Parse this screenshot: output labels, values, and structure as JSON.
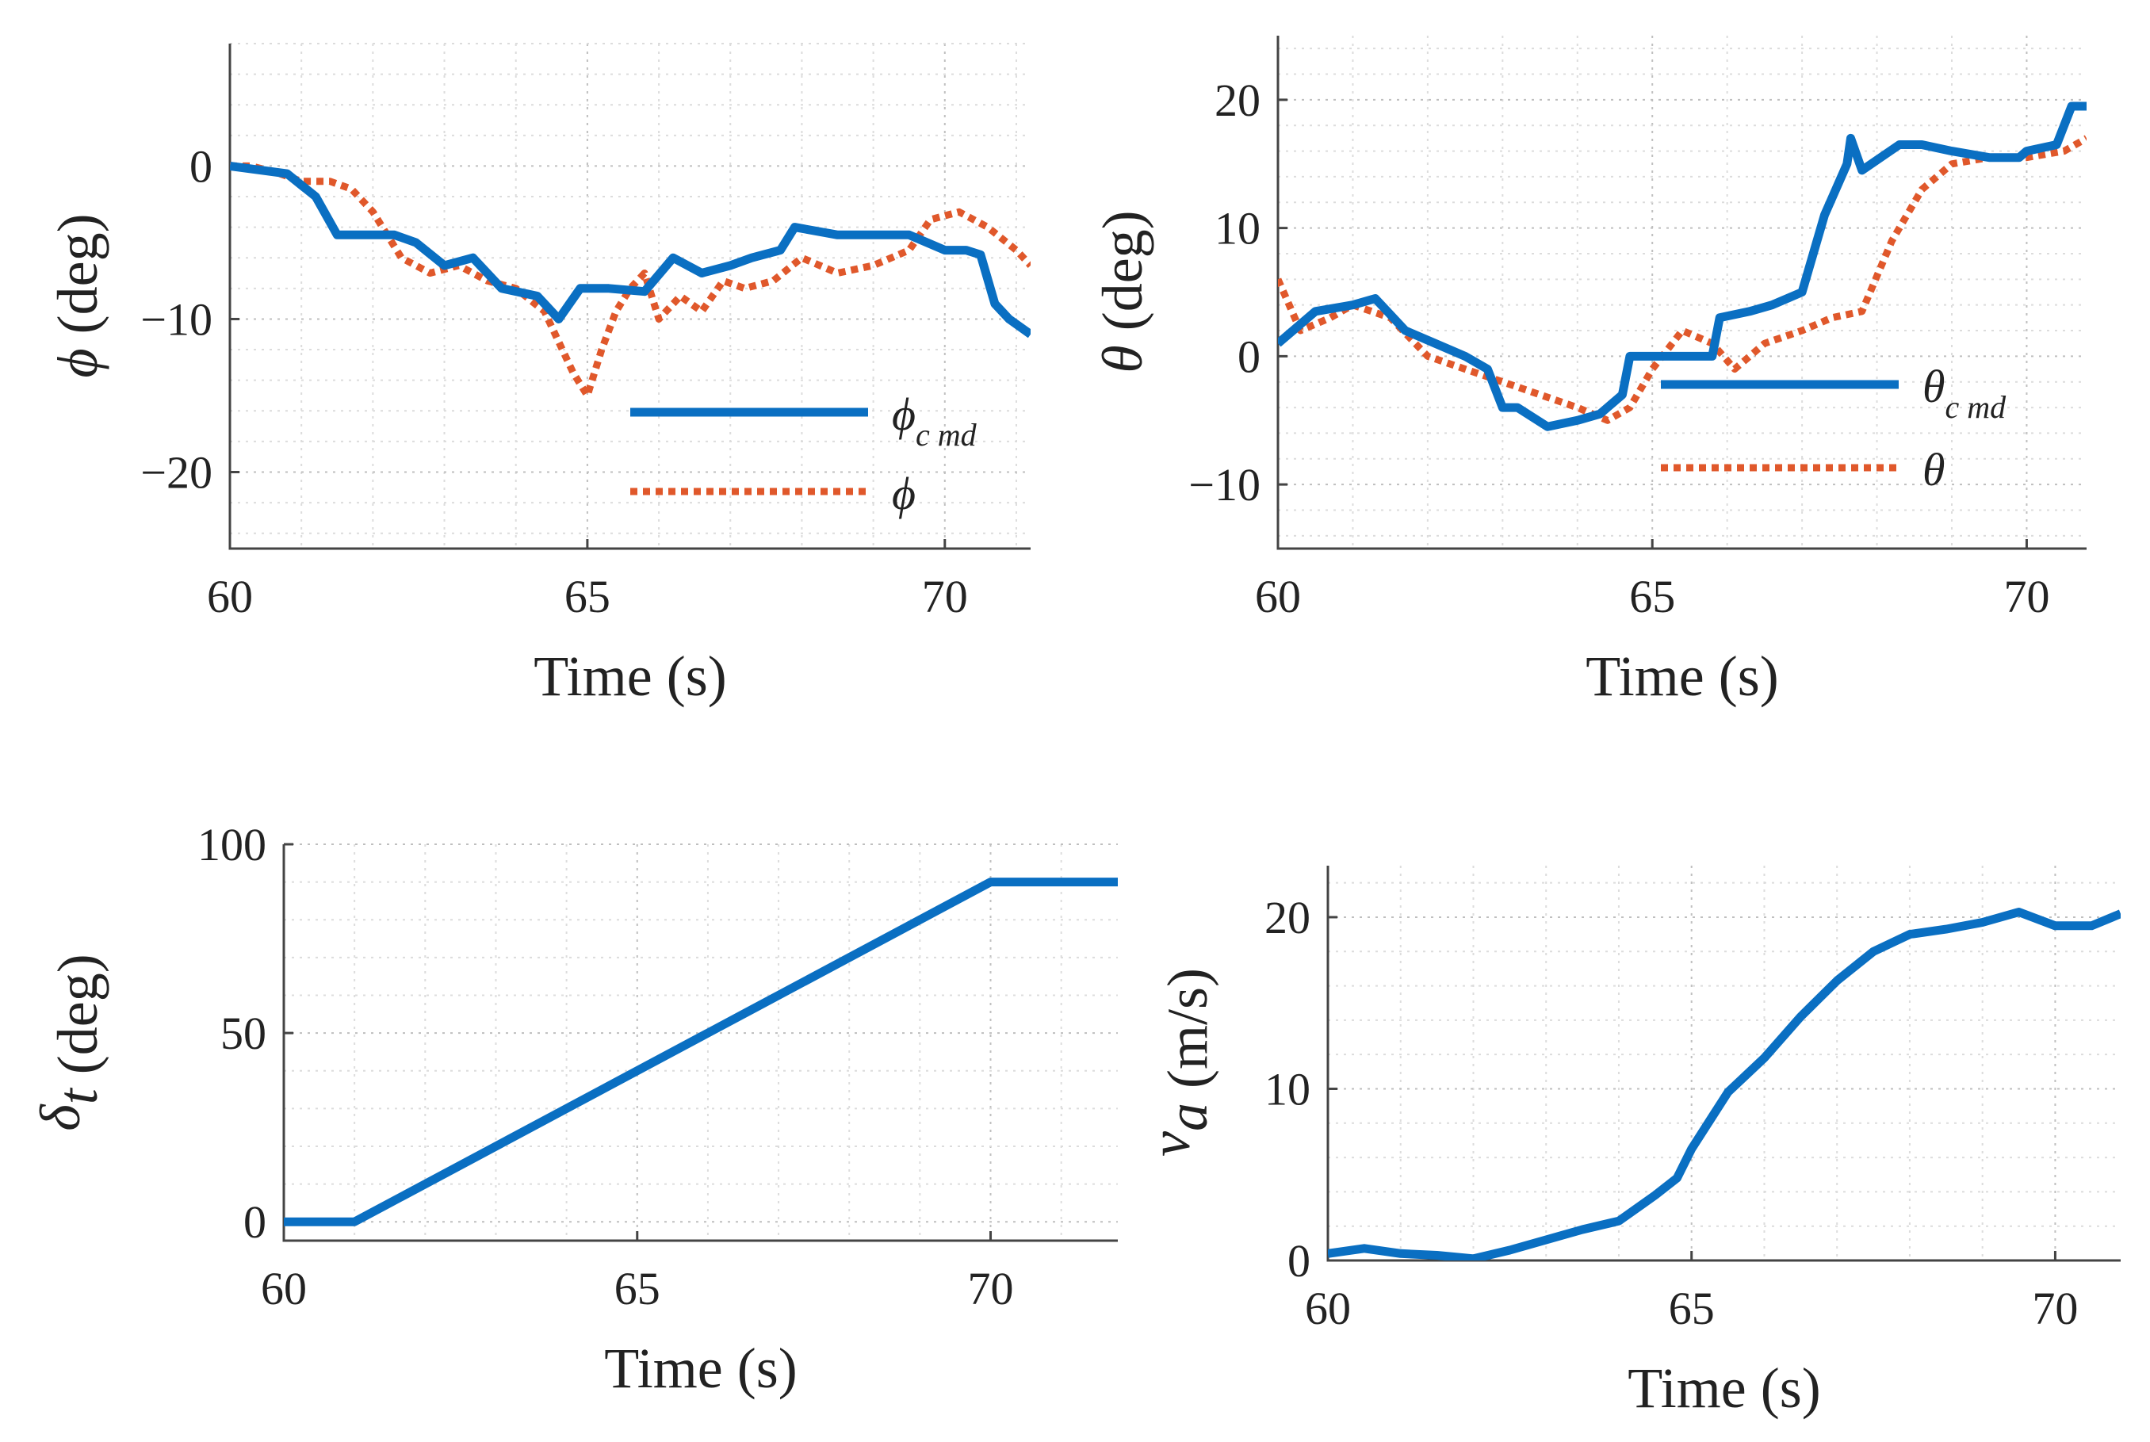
{
  "colors": {
    "cmd": "#0a6fc2",
    "actual": "#e0582b",
    "axis": "#444444",
    "text": "#222222"
  },
  "chart_data": [
    {
      "id": "roll",
      "type": "line",
      "xlabel": "Time (s)",
      "ylabel_symbol": "ϕ",
      "ylabel_rest": " (deg)",
      "xlim": [
        60,
        71.2
      ],
      "ylim": [
        -25,
        8
      ],
      "xticks": [
        60,
        65,
        70
      ],
      "yticks": [
        0,
        -10,
        -20
      ],
      "ytick_labels": [
        "0",
        "−10",
        "−20"
      ],
      "series": [
        {
          "name": "ϕ",
          "sub": "c md",
          "role": "cmd",
          "style": "solid",
          "x": [
            60,
            60.8,
            61.2,
            61.5,
            62.3,
            62.6,
            63.0,
            63.4,
            63.8,
            64.3,
            64.6,
            64.9,
            65.3,
            65.8,
            66.2,
            66.6,
            67.0,
            67.3,
            67.7,
            67.9,
            68.5,
            69.0,
            69.5,
            70.0,
            70.3,
            70.5,
            70.7,
            70.9,
            71.2
          ],
          "y": [
            0,
            -0.5,
            -2,
            -4.5,
            -4.5,
            -5,
            -6.5,
            -6,
            -8,
            -8.5,
            -10,
            -8,
            -8,
            -8.2,
            -6,
            -7,
            -6.5,
            -6,
            -5.5,
            -4,
            -4.5,
            -4.5,
            -4.5,
            -5.5,
            -5.5,
            -5.8,
            -9,
            -10,
            -11
          ]
        },
        {
          "name": "ϕ",
          "sub": "",
          "role": "actual",
          "style": "dotted",
          "x": [
            60,
            60.3,
            60.7,
            61.0,
            61.4,
            61.7,
            62.0,
            62.4,
            62.8,
            63.2,
            63.6,
            64.0,
            64.4,
            64.8,
            65.0,
            65.2,
            65.4,
            65.6,
            65.8,
            66.0,
            66.3,
            66.6,
            66.9,
            67.2,
            67.6,
            68.0,
            68.5,
            69.0,
            69.5,
            69.8,
            70.2,
            70.6,
            71.0,
            71.2
          ],
          "y": [
            0,
            0,
            -0.5,
            -1,
            -1,
            -1.5,
            -3,
            -6,
            -7,
            -6.5,
            -7.5,
            -8,
            -9.5,
            -13.5,
            -15,
            -12,
            -9.5,
            -8,
            -7,
            -10,
            -8.5,
            -9.5,
            -7.5,
            -8,
            -7.5,
            -6,
            -7,
            -6.5,
            -5.5,
            -3.5,
            -3,
            -4,
            -5.5,
            -6.5
          ]
        }
      ]
    },
    {
      "id": "pitch",
      "type": "line",
      "xlabel": "Time (s)",
      "ylabel_symbol": "θ",
      "ylabel_rest": " (deg)",
      "xlim": [
        60,
        70.8
      ],
      "ylim": [
        -15,
        25
      ],
      "xticks": [
        60,
        65,
        70
      ],
      "yticks": [
        20,
        10,
        0,
        -10
      ],
      "ytick_labels": [
        "20",
        "10",
        "0",
        "−10"
      ],
      "series": [
        {
          "name": "θ",
          "sub": "c md",
          "role": "cmd",
          "style": "solid",
          "x": [
            60,
            60.5,
            61.0,
            61.3,
            61.7,
            62.1,
            62.5,
            62.8,
            63.0,
            63.2,
            63.6,
            64.0,
            64.3,
            64.6,
            64.7,
            65.0,
            65.8,
            65.9,
            66.3,
            66.6,
            67.0,
            67.3,
            67.6,
            67.65,
            67.8,
            68.3,
            68.6,
            69.0,
            69.5,
            69.9,
            70.0,
            70.4,
            70.6,
            70.8
          ],
          "y": [
            1,
            3.5,
            4,
            4.5,
            2,
            1,
            0,
            -1,
            -4,
            -4,
            -5.5,
            -5,
            -4.5,
            -3,
            0,
            0,
            0,
            3,
            3.5,
            4,
            5,
            11,
            15,
            17,
            14.5,
            16.5,
            16.5,
            16,
            15.5,
            15.5,
            16,
            16.5,
            19.5,
            19.5
          ]
        },
        {
          "name": "θ",
          "sub": "",
          "role": "actual",
          "style": "dotted",
          "x": [
            60,
            60.3,
            60.7,
            61.0,
            61.5,
            62.0,
            62.5,
            63.0,
            63.5,
            64.0,
            64.4,
            64.7,
            65.0,
            65.4,
            65.8,
            66.1,
            66.5,
            67.0,
            67.4,
            67.8,
            68.2,
            68.6,
            69.0,
            69.5,
            70.0,
            70.5,
            70.8
          ],
          "y": [
            6,
            2,
            3,
            4,
            3,
            0,
            -1,
            -2,
            -3,
            -4,
            -5,
            -4,
            -1,
            2,
            1,
            -1,
            1,
            2,
            3,
            3.5,
            9,
            13,
            15,
            15.5,
            15.5,
            16,
            17
          ]
        }
      ]
    },
    {
      "id": "throttle",
      "type": "line",
      "xlabel": "Time (s)",
      "ylabel_symbol": "δ",
      "ylabel_sub": "t",
      "ylabel_rest": " (deg)",
      "xlim": [
        60,
        71.8
      ],
      "ylim": [
        -5,
        100
      ],
      "xticks": [
        60,
        65,
        70
      ],
      "yticks": [
        100,
        50,
        0
      ],
      "ytick_labels": [
        "100",
        "50",
        "0"
      ],
      "series": [
        {
          "name": "δt",
          "sub": "",
          "role": "cmd",
          "style": "solid",
          "x": [
            60,
            61,
            70,
            71.8
          ],
          "y": [
            0,
            0,
            90,
            90
          ]
        }
      ]
    },
    {
      "id": "airspeed",
      "type": "line",
      "xlabel": "Time (s)",
      "ylabel_symbol": "v",
      "ylabel_sub": "a",
      "ylabel_rest": " (m/s)",
      "xlim": [
        60,
        70.9
      ],
      "ylim": [
        0,
        23
      ],
      "xticks": [
        60,
        65,
        70
      ],
      "yticks": [
        20,
        10,
        0
      ],
      "ytick_labels": [
        "20",
        "10",
        "0"
      ],
      "series": [
        {
          "name": "va",
          "sub": "",
          "role": "cmd",
          "style": "solid",
          "x": [
            60,
            60.5,
            61.0,
            61.5,
            62.0,
            62.5,
            63.0,
            63.5,
            64.0,
            64.5,
            64.8,
            65.0,
            65.5,
            66.0,
            66.5,
            67.0,
            67.5,
            68.0,
            68.5,
            69.0,
            69.5,
            70.0,
            70.5,
            70.9
          ],
          "y": [
            0.4,
            0.7,
            0.4,
            0.3,
            0.1,
            0.6,
            1.2,
            1.8,
            2.3,
            3.8,
            4.8,
            6.5,
            9.8,
            11.8,
            14.2,
            16.3,
            18.0,
            19.0,
            19.3,
            19.7,
            20.3,
            19.5,
            19.5,
            20.2
          ]
        }
      ]
    }
  ]
}
